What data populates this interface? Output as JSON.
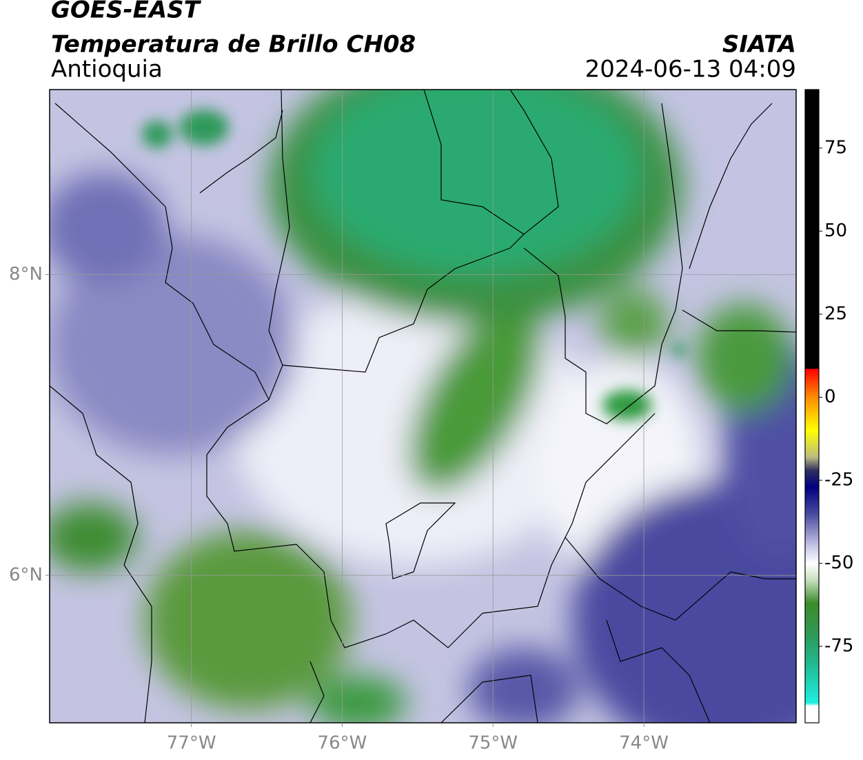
{
  "header": {
    "satellite": "GOES-EAST",
    "product": "Temperatura de Brillo CH08",
    "region": "Antioquia",
    "source": "SIATA",
    "datetime": "2024-06-13 04:09"
  },
  "chart_data": {
    "type": "map",
    "xlim": [
      -77.94,
      -72.99
    ],
    "ylim": [
      5.02,
      9.23
    ],
    "xticks": [
      {
        "value": -77,
        "label": "77°W"
      },
      {
        "value": -76,
        "label": "76°W"
      },
      {
        "value": -75,
        "label": "75°W"
      },
      {
        "value": -74,
        "label": "74°W"
      }
    ],
    "yticks": [
      {
        "value": 8,
        "label": "8°N"
      },
      {
        "value": 6,
        "label": "6°N"
      }
    ],
    "grid": true,
    "colorbar": {
      "lim": [
        -98,
        92.6
      ],
      "ticks": [
        75,
        50,
        25,
        0,
        -25,
        -50,
        -75
      ],
      "stops": [
        {
          "value": 92.6,
          "color": "#000000"
        },
        {
          "value": 8.6,
          "color": "#000000"
        },
        {
          "value": 8.5,
          "color": "#ff0000"
        },
        {
          "value": 0,
          "color": "#ff8c00"
        },
        {
          "value": -10,
          "color": "#ffff00"
        },
        {
          "value": -18,
          "color": "#bcbc80"
        },
        {
          "value": -22,
          "color": "#303060"
        },
        {
          "value": -27,
          "color": "#000080"
        },
        {
          "value": -35,
          "color": "#4848a0"
        },
        {
          "value": -45,
          "color": "#c8c8e8"
        },
        {
          "value": -50,
          "color": "#ffffff"
        },
        {
          "value": -55,
          "color": "#c8e0c0"
        },
        {
          "value": -62,
          "color": "#3a8c2a"
        },
        {
          "value": -72,
          "color": "#2e9a5a"
        },
        {
          "value": -80,
          "color": "#20b890"
        },
        {
          "value": -92,
          "color": "#20f0e0"
        },
        {
          "value": -93,
          "color": "#ffffff"
        },
        {
          "value": -98,
          "color": "#ffffff"
        }
      ]
    }
  }
}
